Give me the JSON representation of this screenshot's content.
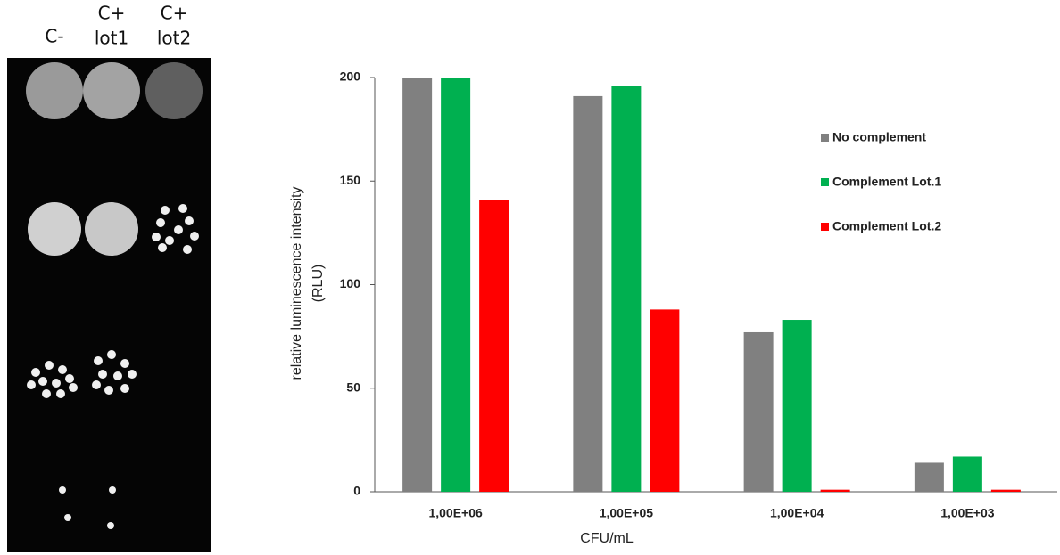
{
  "image_panel": {
    "columns": [
      [
        "C-"
      ],
      [
        "C+",
        "lot1"
      ],
      [
        "C+",
        "lot2"
      ]
    ]
  },
  "chart_data": {
    "type": "bar",
    "x_label": "CFU/mL",
    "y_label": [
      "relative luminescence intensity",
      "(RLU)"
    ],
    "categories": [
      "1,00E+06",
      "1,00E+05",
      "1,00E+04",
      "1,00E+03"
    ],
    "series": [
      {
        "name": "No complement",
        "color": "#808080",
        "values": [
          200,
          191,
          77,
          14
        ]
      },
      {
        "name": "Complement Lot.1",
        "color": "#00b050",
        "values": [
          200,
          196,
          83,
          17
        ]
      },
      {
        "name": "Complement Lot.2",
        "color": "#ff0000",
        "values": [
          141,
          88,
          1,
          1
        ]
      }
    ],
    "ylim": [
      0,
      200
    ],
    "yticks": [
      0,
      50,
      100,
      150,
      200
    ],
    "grid": false,
    "legend": "right"
  }
}
